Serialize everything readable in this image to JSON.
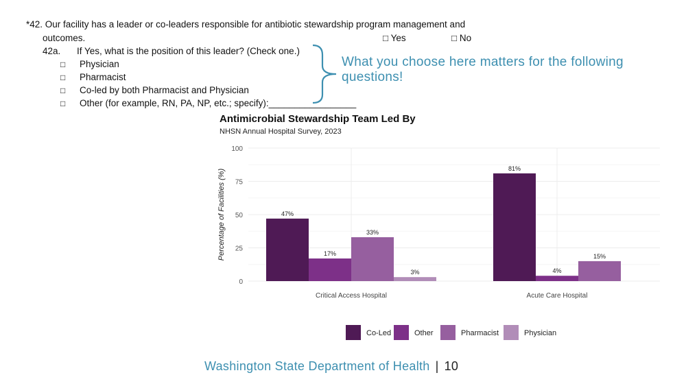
{
  "survey": {
    "q42_line1": "*42. Our facility has a leader or co-leaders responsible for antibiotic stewardship program management and",
    "q42_line2": "outcomes.",
    "yes_label": "□  Yes",
    "no_label": "□  No",
    "q42a_number": "42a.",
    "q42a_text": "If Yes, what is the position of this leader? (Check one.)",
    "checkbox_glyph": "□",
    "choices": [
      "Physician",
      "Pharmacist",
      "Co-led by both Pharmacist and Physician",
      "Other (for example, RN, PA, NP, etc.; specify):_________________"
    ]
  },
  "callout": "What you choose here matters for the following questions!",
  "footer": {
    "org": "Washington State Department of Health",
    "separator": "|",
    "page": "10"
  },
  "colors": {
    "accent": "#3d8fb0",
    "co_led": "#4f1a55",
    "other": "#7d3088",
    "pharmacist": "#965f9f",
    "physician": "#b18db8"
  },
  "chart_data": {
    "type": "bar",
    "title": "Antimicrobial Stewardship Team Led By",
    "subtitle": "NHSN Annual Hospital Survey, 2023",
    "xlabel": "",
    "ylabel": "Percentage of Facilities (%)",
    "ylim": [
      0,
      100
    ],
    "yticks": [
      0,
      25,
      50,
      75,
      100
    ],
    "categories": [
      "Critical Access Hospital",
      "Acute Care Hospital"
    ],
    "series": [
      {
        "name": "Co-Led",
        "color": "#4f1a55",
        "values": [
          47,
          81
        ],
        "labels": [
          "47%",
          "81%"
        ]
      },
      {
        "name": "Other",
        "color": "#7d3088",
        "values": [
          17,
          4
        ],
        "labels": [
          "17%",
          "4%"
        ]
      },
      {
        "name": "Pharmacist",
        "color": "#965f9f",
        "values": [
          33,
          15
        ],
        "labels": [
          "33%",
          "15%"
        ]
      },
      {
        "name": "Physician",
        "color": "#b18db8",
        "values": [
          3,
          null
        ],
        "labels": [
          "3%",
          ""
        ]
      }
    ],
    "grid": true,
    "legend": "bottom"
  }
}
